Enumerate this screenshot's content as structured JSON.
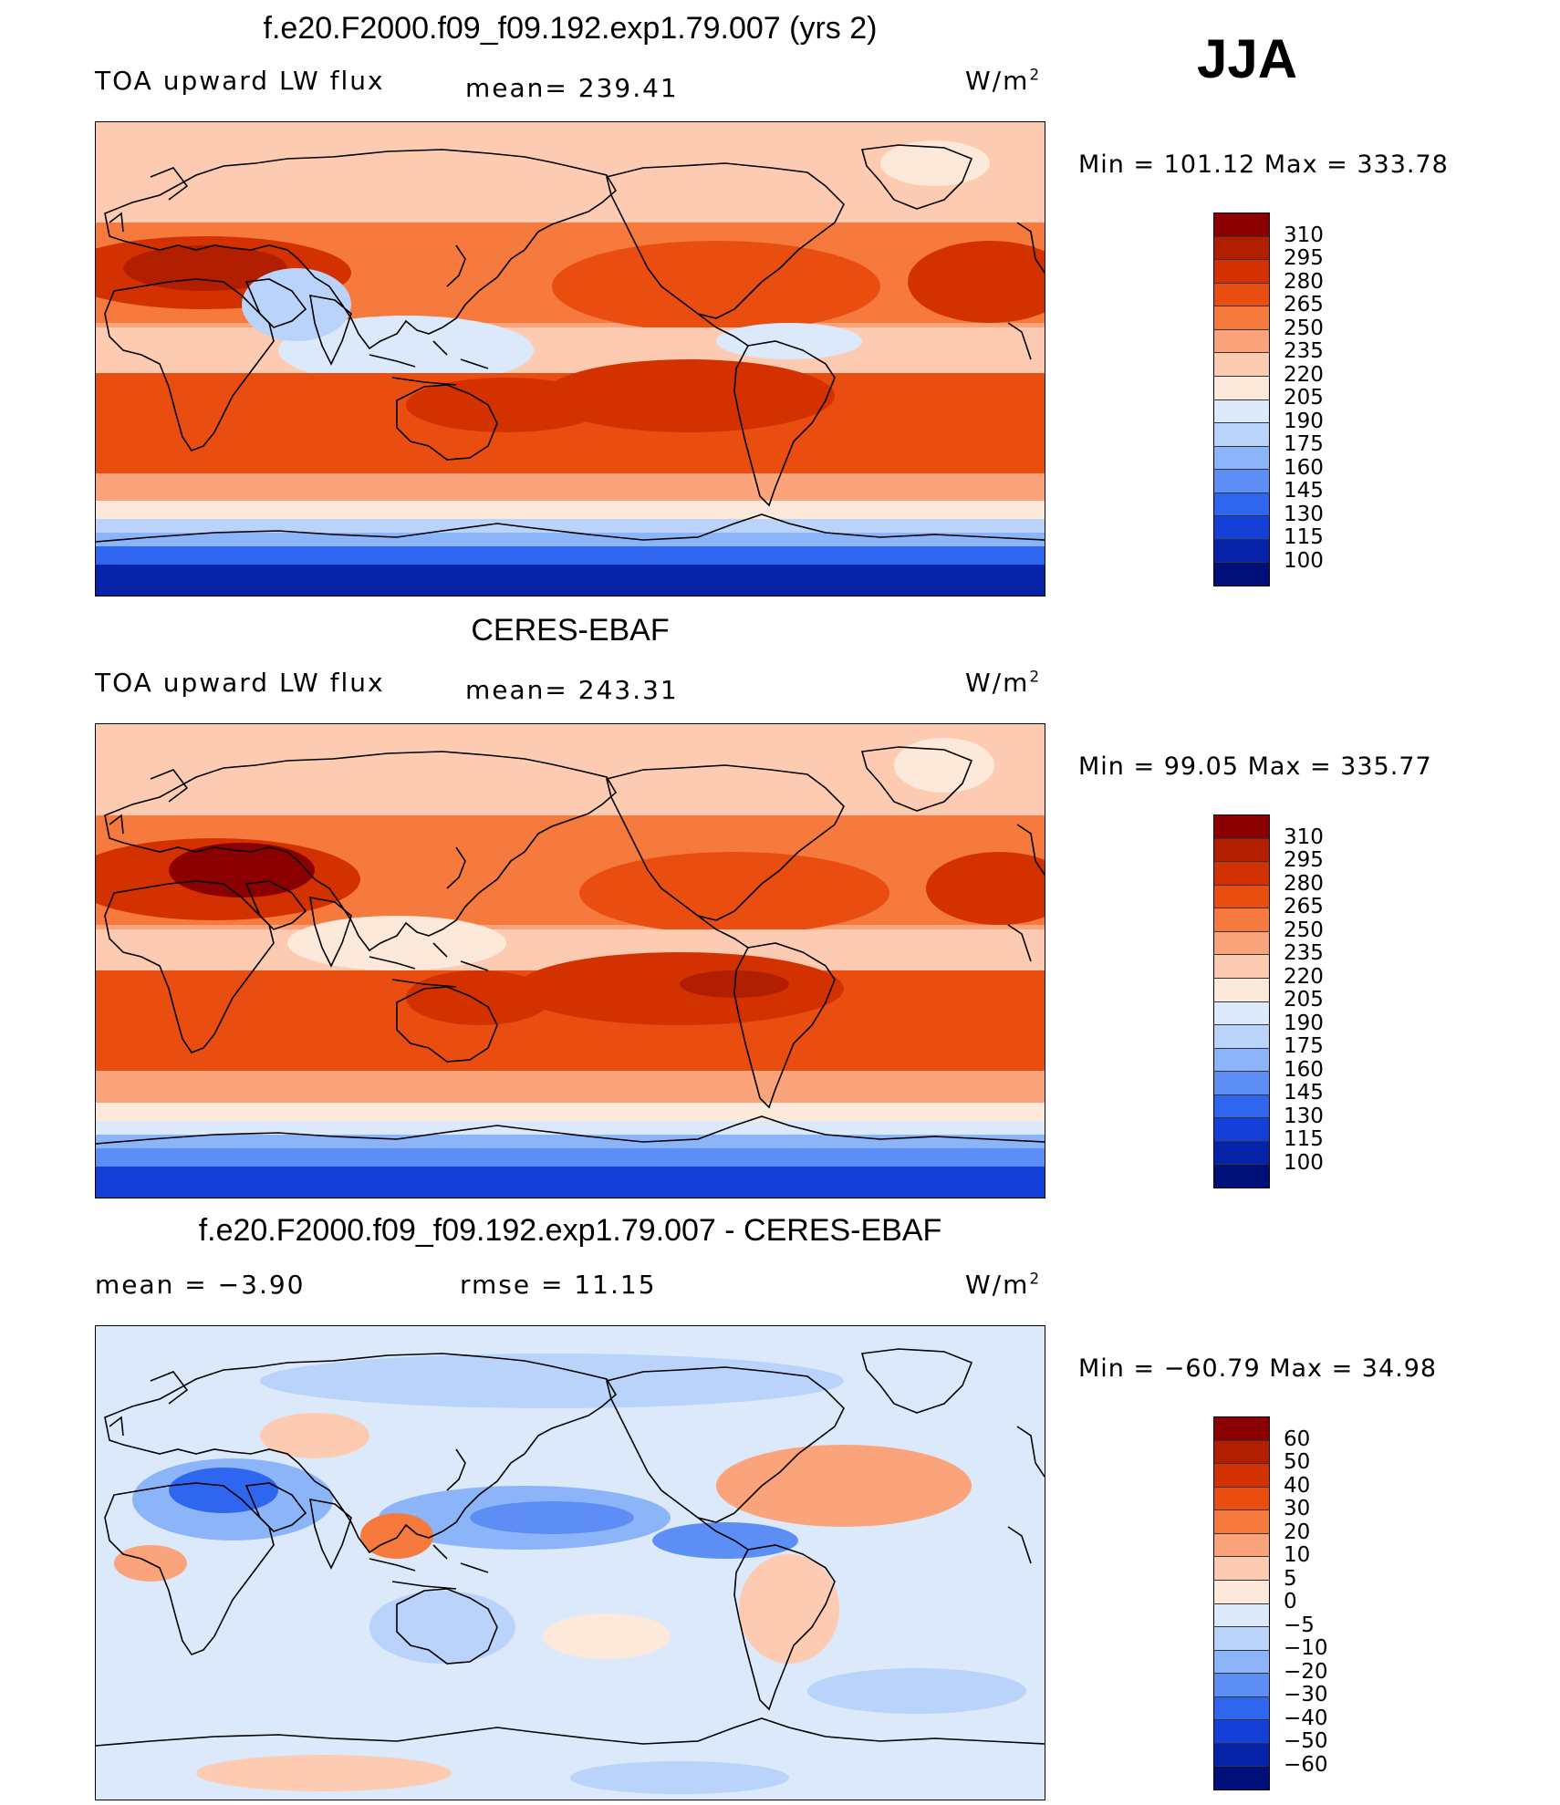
{
  "season": "JJA",
  "units": "W/m",
  "units_exp": "2",
  "panels": [
    {
      "title": "f.e20.F2000.f09_f09.192.exp1.79.007 (yrs 2)",
      "left_label": "TOA upward LW flux",
      "mid_label": "mean= 239.41",
      "minmax": "Min = 101.12 Max = 333.78",
      "levels": [
        "310",
        "295",
        "280",
        "265",
        "250",
        "235",
        "220",
        "205",
        "190",
        "175",
        "160",
        "145",
        "130",
        "115",
        "100"
      ],
      "colors": [
        "#8b0000",
        "#b21e00",
        "#d33200",
        "#e94e10",
        "#f67a3e",
        "#fba37a",
        "#fdcbb2",
        "#fde9d9",
        "#dbe9fb",
        "#b9d3fb",
        "#8cb5f9",
        "#5c8ef6",
        "#2f66f0",
        "#1440d9",
        "#0622a8",
        "#00107a"
      ]
    },
    {
      "title": "CERES-EBAF",
      "left_label": "TOA upward LW flux",
      "mid_label": "mean= 243.31",
      "minmax": "Min = 99.05 Max = 335.77",
      "levels": [
        "310",
        "295",
        "280",
        "265",
        "250",
        "235",
        "220",
        "205",
        "190",
        "175",
        "160",
        "145",
        "130",
        "115",
        "100"
      ],
      "colors": [
        "#8b0000",
        "#b21e00",
        "#d33200",
        "#e94e10",
        "#f67a3e",
        "#fba37a",
        "#fdcbb2",
        "#fde9d9",
        "#dbe9fb",
        "#b9d3fb",
        "#8cb5f9",
        "#5c8ef6",
        "#2f66f0",
        "#1440d9",
        "#0622a8",
        "#00107a"
      ]
    },
    {
      "title": "f.e20.F2000.f09_f09.192.exp1.79.007 - CERES-EBAF",
      "left_label": "mean = −3.90",
      "mid_label": "rmse = 11.15",
      "minmax": "Min = −60.79 Max = 34.98",
      "levels": [
        "60",
        "50",
        "40",
        "30",
        "20",
        "10",
        "5",
        "0",
        "−5",
        "−10",
        "−20",
        "−30",
        "−40",
        "−50",
        "−60"
      ],
      "colors": [
        "#8b0000",
        "#b21e00",
        "#d33200",
        "#e94e10",
        "#f67a3e",
        "#fba37a",
        "#fdcbb2",
        "#fde9d9",
        "#dbe9fb",
        "#b9d3fb",
        "#8cb5f9",
        "#5c8ef6",
        "#2f66f0",
        "#1440d9",
        "#0622a8",
        "#00107a"
      ]
    }
  ]
}
